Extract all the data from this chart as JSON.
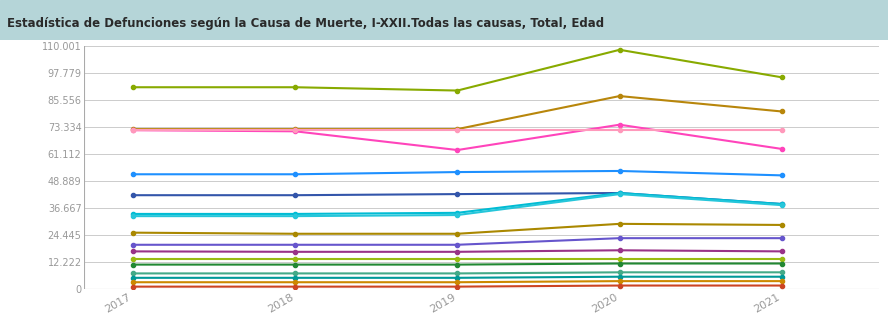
{
  "title": "Estadística de Defunciones según la Causa de Muerte, I-XXII.Todas las causas, Total, Edad",
  "title_color": "#2a2a2a",
  "title_bg_left": "#b8d8d8",
  "title_bg_right": "#d8ecec",
  "years": [
    2017,
    2018,
    2019,
    2020,
    2021
  ],
  "ytick_labels": [
    "0",
    "12.222",
    "24.445",
    "36.667",
    "48.889",
    "61.112",
    "73.334",
    "85.556",
    "97.779",
    "110.001"
  ],
  "ytick_values": [
    0,
    12.222,
    24.445,
    36.667,
    48.889,
    61.112,
    73.334,
    85.556,
    97.779,
    110.001
  ],
  "ylim": [
    0,
    110.001
  ],
  "xlim": [
    2016.7,
    2021.6
  ],
  "series": [
    {
      "color": "#88aa00",
      "values": [
        91.5,
        91.5,
        90.0,
        108.5,
        96.0
      ]
    },
    {
      "color": "#b8860b",
      "values": [
        72.5,
        72.5,
        72.5,
        87.5,
        80.5
      ]
    },
    {
      "color": "#ff44bb",
      "values": [
        72.0,
        71.5,
        63.0,
        74.5,
        63.5
      ]
    },
    {
      "color": "#ff99bb",
      "values": [
        72.0,
        72.0,
        72.0,
        72.0,
        72.0
      ]
    },
    {
      "color": "#1e90ff",
      "values": [
        52.0,
        52.0,
        53.0,
        53.5,
        51.5
      ]
    },
    {
      "color": "#3355aa",
      "values": [
        42.5,
        42.5,
        43.0,
        43.5,
        38.5
      ]
    },
    {
      "color": "#00bcd4",
      "values": [
        34.0,
        34.0,
        34.5,
        43.5,
        38.5
      ]
    },
    {
      "color": "#26c6da",
      "values": [
        33.0,
        33.0,
        33.5,
        43.0,
        38.0
      ]
    },
    {
      "color": "#aa8800",
      "values": [
        25.5,
        25.0,
        25.0,
        29.5,
        29.0
      ]
    },
    {
      "color": "#6655cc",
      "values": [
        20.0,
        20.0,
        20.0,
        23.0,
        23.0
      ]
    },
    {
      "color": "#993388",
      "values": [
        17.0,
        16.8,
        16.8,
        17.5,
        17.0
      ]
    },
    {
      "color": "#99bb11",
      "values": [
        13.5,
        13.5,
        13.5,
        13.5,
        13.5
      ]
    },
    {
      "color": "#228833",
      "values": [
        11.0,
        11.0,
        11.0,
        11.5,
        11.5
      ]
    },
    {
      "color": "#44aa88",
      "values": [
        7.0,
        7.0,
        7.0,
        7.5,
        7.5
      ]
    },
    {
      "color": "#009999",
      "values": [
        5.0,
        5.0,
        5.0,
        5.5,
        5.5
      ]
    },
    {
      "color": "#cc8800",
      "values": [
        3.0,
        3.0,
        3.0,
        3.5,
        3.5
      ]
    },
    {
      "color": "#cc4422",
      "values": [
        1.0,
        1.0,
        1.0,
        1.5,
        1.5
      ]
    }
  ],
  "plot_bg": "#ffffff",
  "grid_color": "#cccccc",
  "marker": "o",
  "marker_size": 3,
  "linewidth": 1.5
}
